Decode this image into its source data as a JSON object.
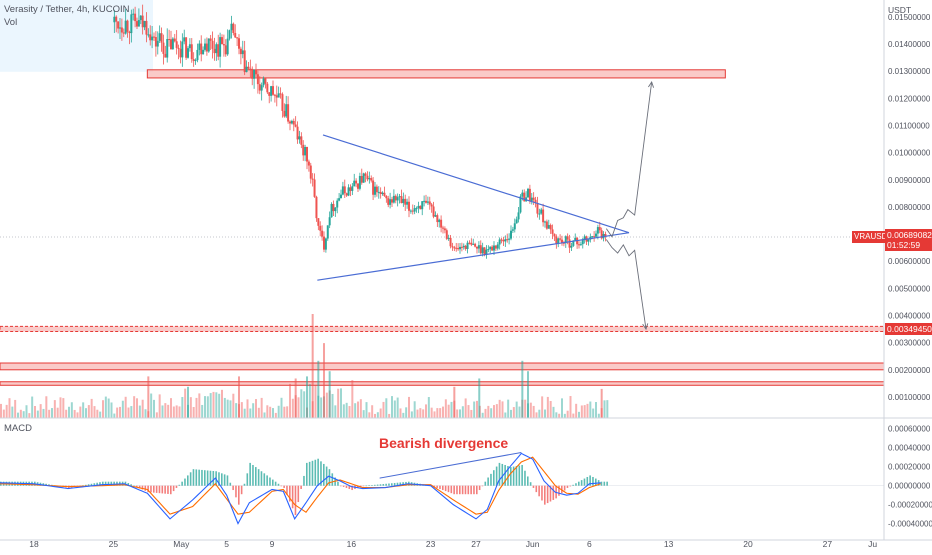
{
  "header": {
    "symbol_line": "Verasity / Tether, 4h, KUCOIN",
    "volume_label": "Vol",
    "macd_label": "MACD",
    "currency": "USDT"
  },
  "annotation": {
    "divergence_text": "Bearish divergence"
  },
  "price_tag": {
    "symbol": "VRAUSDT",
    "price": "0.00689082",
    "countdown": "01:52:59"
  },
  "support_tag": {
    "price": "0.00349450"
  },
  "colors": {
    "up": "#26a69a",
    "down": "#ef5350",
    "trend_line": "#4a6cd4",
    "zone_fill": "#f8b8b5",
    "zone_stroke": "#e53935",
    "macd_line": "#2962ff",
    "signal_line": "#ff6d00",
    "highlight_bg": "#e3f2fd",
    "annotation_text": "#e53935"
  },
  "chart_data": [
    {
      "type": "line",
      "panel": "price",
      "title": "Verasity / Tether, 4h, KUCOIN",
      "y_axis_ticks": [
        "0.01400000",
        "0.01300000",
        "0.01200000",
        "0.01100000",
        "0.01000000",
        "0.00900000",
        "0.00800000",
        "0.00700000",
        "0.00600000",
        "0.00500000",
        "0.00400000",
        "0.00300000",
        "0.00200000",
        "0.00100000"
      ],
      "y_axis_ticks_values": [
        0.014,
        0.013,
        0.012,
        0.011,
        0.01,
        0.009,
        0.008,
        0.007,
        0.006,
        0.005,
        0.004,
        0.003,
        0.002,
        0.001
      ],
      "y_axis_partial_tick": "0.01500000",
      "x_axis_ticks": [
        "18",
        "25",
        "May",
        "5",
        "9",
        "16",
        "23",
        "27",
        "Jun",
        "6",
        "13",
        "20",
        "27",
        "Ju"
      ],
      "x_axis_ticks_days": [
        -13,
        -6,
        0,
        4,
        8,
        15,
        22,
        26,
        31,
        36,
        43,
        50,
        57,
        61
      ],
      "ylim": [
        0.0005,
        0.015
      ],
      "xlim": [
        -16.0,
        62.0
      ],
      "series": [
        {
          "x": [
            -6.0,
            -3.0,
            -2.5,
            -2.0,
            -1.5,
            -1.0,
            0.0,
            1.0,
            2.0,
            3.0,
            4.0,
            4.5,
            5.0,
            6.0,
            7.0,
            8.0,
            9.0,
            10.0,
            10.5,
            11.0,
            11.5,
            12.0,
            12.5,
            13.0,
            14.0,
            15.0,
            16.0,
            17.0,
            18.0,
            19.0,
            20.0,
            21.0,
            22.0,
            23.0,
            23.5,
            24.0,
            25.0,
            26.0,
            27.0,
            28.0,
            29.0,
            30.0,
            30.5,
            31.0,
            31.5,
            32.0,
            32.5,
            33.0,
            34.0,
            35.0,
            36.0,
            36.5,
            37.0,
            37.5
          ],
          "values": [
            0.0148,
            0.0147,
            0.014,
            0.0142,
            0.0138,
            0.014,
            0.0139,
            0.0137,
            0.0141,
            0.0139,
            0.014,
            0.0145,
            0.0136,
            0.0129,
            0.0124,
            0.0122,
            0.0116,
            0.0108,
            0.0102,
            0.0098,
            0.0088,
            0.0072,
            0.0066,
            0.0078,
            0.0085,
            0.0087,
            0.0091,
            0.0086,
            0.0082,
            0.0083,
            0.0079,
            0.0081,
            0.0079,
            0.0073,
            0.0069,
            0.0064,
            0.0066,
            0.0065,
            0.0064,
            0.0067,
            0.007,
            0.0084,
            0.0085,
            0.0082,
            0.0078,
            0.0075,
            0.007,
            0.0068,
            0.0067,
            0.0067,
            0.0068,
            0.0072,
            0.007,
            0.0069
          ]
        }
      ],
      "trendlines": [
        {
          "name": "upper",
          "from": [
            12.5,
            0.01065
          ],
          "to": [
            39.5,
            0.00705
          ]
        },
        {
          "name": "lower",
          "from": [
            12.0,
            0.0053
          ],
          "to": [
            39.5,
            0.00705
          ]
        }
      ],
      "projections": [
        {
          "name": "breakout",
          "path": [
            [
              37.5,
              0.0072
            ],
            [
              38.0,
              0.0069
            ],
            [
              38.5,
              0.0075
            ],
            [
              39.0,
              0.0076
            ],
            [
              39.4,
              0.0079
            ],
            [
              40.0,
              0.0077
            ],
            [
              41.5,
              0.0126
            ]
          ]
        },
        {
          "name": "breakdown",
          "path": [
            [
              37.5,
              0.0068
            ],
            [
              38.0,
              0.0065
            ],
            [
              38.5,
              0.0063
            ],
            [
              39.0,
              0.0066
            ],
            [
              39.5,
              0.0062
            ],
            [
              40.0,
              0.0064
            ],
            [
              41.0,
              0.0035
            ]
          ]
        }
      ],
      "zones": [
        {
          "name": "resistance",
          "from_x": -3.0,
          "to_x": 48.0,
          "top": 0.01305,
          "bottom": 0.01275
        },
        {
          "name": "support",
          "from_x": -16.0,
          "to_x": 62.0,
          "top": 0.0036,
          "bottom": 0.00341,
          "dashed": true
        },
        {
          "name": "zone-a",
          "from_x": -16.0,
          "to_x": 62.0,
          "top": 0.00225,
          "bottom": 0.002
        },
        {
          "name": "zone-b",
          "from_x": -16.0,
          "to_x": 62.0,
          "top": 0.00156,
          "bottom": 0.00143
        }
      ],
      "current_price": 0.00689082,
      "support_price": 0.0034945
    },
    {
      "type": "bar",
      "panel": "volume",
      "title": "Vol",
      "note": "relative volume heights (0-1)",
      "spikes": [
        {
          "x": -3.0,
          "value": 0.4,
          "dir": "down"
        },
        {
          "x": 0.5,
          "value": 0.3,
          "dir": "up"
        },
        {
          "x": 5.0,
          "value": 0.4,
          "dir": "down"
        },
        {
          "x": 10.0,
          "value": 0.38,
          "dir": "down"
        },
        {
          "x": 11.0,
          "value": 0.4,
          "dir": "up"
        },
        {
          "x": 11.5,
          "value": 1.0,
          "dir": "down"
        },
        {
          "x": 12.0,
          "value": 0.55,
          "dir": "up"
        },
        {
          "x": 12.5,
          "value": 0.72,
          "dir": "down"
        },
        {
          "x": 13.0,
          "value": 0.45,
          "dir": "up"
        },
        {
          "x": 24.0,
          "value": 0.3,
          "dir": "down"
        },
        {
          "x": 26.2,
          "value": 0.38,
          "dir": "up"
        },
        {
          "x": 30.0,
          "value": 0.55,
          "dir": "up"
        },
        {
          "x": 30.5,
          "value": 0.45,
          "dir": "up"
        },
        {
          "x": 37.0,
          "value": 0.28,
          "dir": "down"
        }
      ]
    },
    {
      "type": "bar",
      "panel": "macd",
      "title": "MACD",
      "y_axis_ticks": [
        "0.00060000",
        "0.00040000",
        "0.00020000",
        "0.00000000",
        "-0.00020000",
        "-0.00040000"
      ],
      "y_axis_ticks_values": [
        0.0006,
        0.0004,
        0.0002,
        0.0,
        -0.0002,
        -0.0004
      ],
      "ylim": [
        -0.00052,
        0.00065
      ],
      "macd_line": {
        "x": [
          -16,
          -13,
          -10,
          -7,
          -5,
          -3,
          -1,
          1,
          3,
          4,
          5,
          6,
          8,
          9,
          10,
          11,
          12,
          13,
          14,
          15,
          16,
          18,
          20,
          22,
          24,
          26,
          27,
          28,
          29,
          30,
          31,
          32,
          33,
          34,
          35,
          36,
          37
        ],
        "values": [
          3e-05,
          2e-05,
          -3e-05,
          1e-05,
          2e-05,
          -8e-05,
          -0.00035,
          -0.00015,
          8e-05,
          -0.0001,
          -0.0004,
          -0.00018,
          -4e-05,
          -6e-05,
          -0.00035,
          -0.00018,
          0.0,
          0.0001,
          5e-05,
          -1e-05,
          -3e-05,
          -2e-05,
          2e-05,
          0.0,
          -0.0002,
          -0.00035,
          -0.00025,
          5e-05,
          0.0002,
          0.00034,
          0.00028,
          5e-05,
          -7e-05,
          -0.0001,
          -8e-05,
          2e-05,
          3e-05
        ]
      },
      "signal_line": {
        "x": [
          -16,
          -13,
          -10,
          -7,
          -5,
          -3,
          -1,
          1,
          3,
          5,
          6,
          8,
          9,
          10,
          11,
          12,
          13,
          14,
          15,
          16,
          18,
          20,
          22,
          24,
          26,
          27,
          28,
          29,
          30,
          31,
          32,
          33,
          34,
          35,
          36,
          37
        ],
        "values": [
          2e-05,
          1e-05,
          -1e-05,
          0.0,
          1e-05,
          -4e-05,
          -0.0003,
          -0.00022,
          2e-05,
          -0.0003,
          -0.00028,
          -6e-05,
          -4e-05,
          -0.0002,
          -0.00028,
          -0.00012,
          3e-05,
          6e-05,
          2e-05,
          -2e-05,
          -2e-05,
          1e-05,
          1e-05,
          -0.00015,
          -0.0003,
          -0.00028,
          -5e-05,
          0.00012,
          0.00025,
          0.0003,
          0.00015,
          0.0,
          -8e-05,
          -9e-05,
          -2e-05,
          2e-05
        ]
      },
      "divergence_line": {
        "from": [
          17.5,
          8e-05
        ],
        "to": [
          30.0,
          0.00035
        ]
      },
      "divergence_label": "Bearish divergence"
    }
  ]
}
